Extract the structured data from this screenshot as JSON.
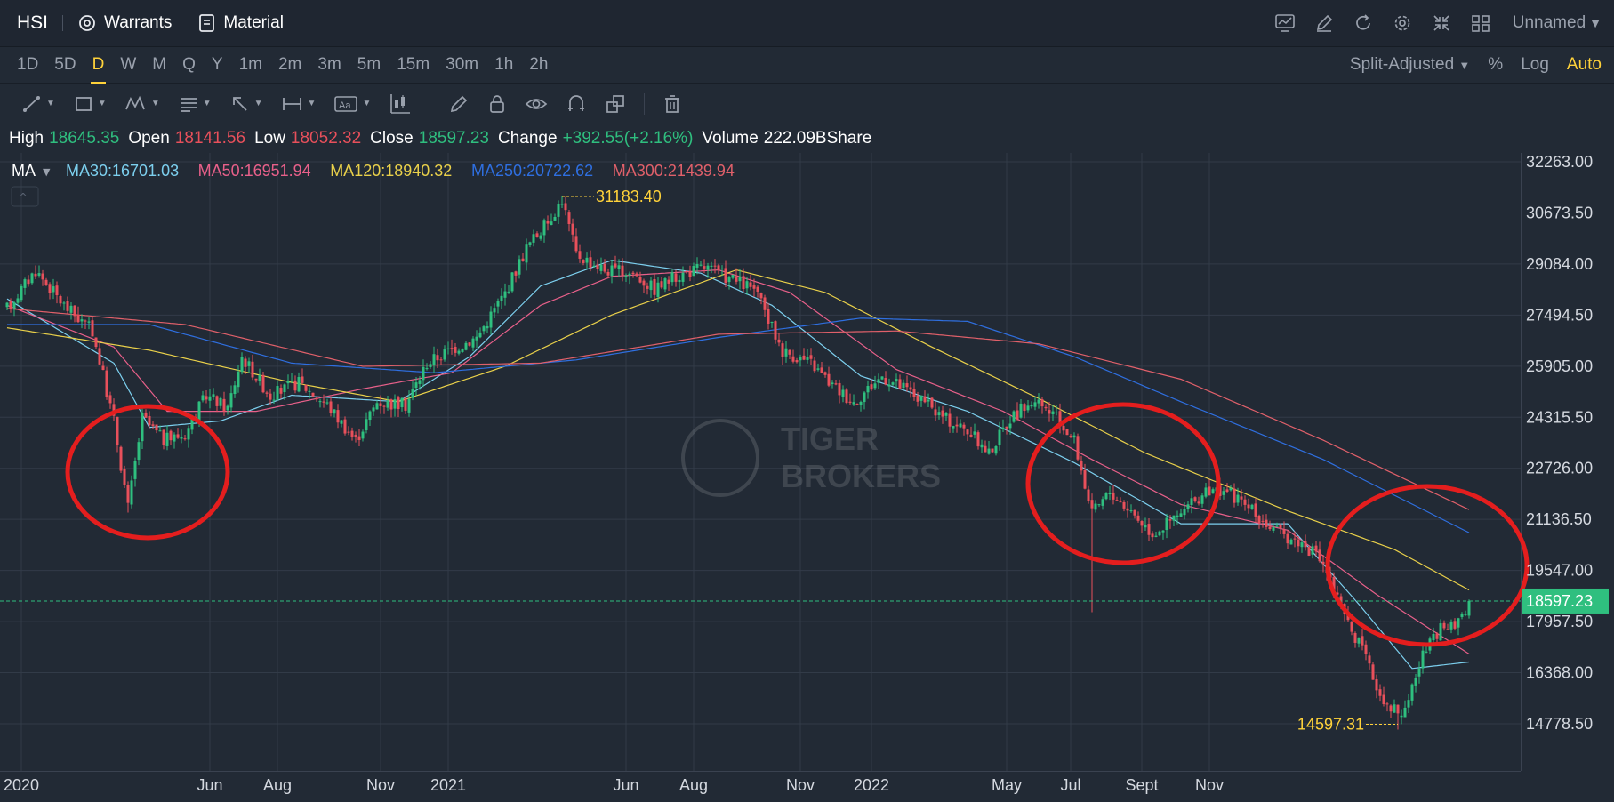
{
  "topbar": {
    "symbol": "HSI",
    "warrants_label": "Warrants",
    "material_label": "Material",
    "layout_name": "Unnamed",
    "icons": [
      "chart-settings-icon",
      "draw-icon",
      "refresh-icon",
      "gear-icon",
      "collapse-icon",
      "grid-layout-icon"
    ]
  },
  "periods": {
    "items": [
      "1D",
      "5D",
      "D",
      "W",
      "M",
      "Q",
      "Y",
      "1m",
      "2m",
      "3m",
      "5m",
      "15m",
      "30m",
      "1h",
      "2h"
    ],
    "active": "D",
    "adjust_label": "Split-Adjusted",
    "percent_label": "%",
    "log_label": "Log",
    "auto_label": "Auto"
  },
  "drawing_tools": [
    "trend-line-icon",
    "rectangle-icon",
    "pattern-icon",
    "fibonacci-icon",
    "arrow-icon",
    "measure-icon",
    "text-icon",
    "candle-icon",
    "pencil-icon",
    "lock-icon",
    "eye-icon",
    "magnet-icon",
    "clone-icon",
    "trash-icon"
  ],
  "info": {
    "high_label": "High",
    "high": "18645.35",
    "open_label": "Open",
    "open": "18141.56",
    "low_label": "Low",
    "low": "18052.32",
    "close_label": "Close",
    "close": "18597.23",
    "change_label": "Change",
    "change": "+392.55(+2.16%)",
    "volume_label": "Volume",
    "volume": "222.09BShare"
  },
  "colors": {
    "up": "#2fbf7f",
    "down": "#e8505b",
    "ma30": "#7ccfee",
    "ma50": "#e8608a",
    "ma120": "#e9d04a",
    "ma250": "#2f6fe0",
    "ma300": "#e0606a",
    "annotation": "#ffd23a",
    "circle": "#e41e1e",
    "price_tag": "#2fbf7f"
  },
  "chart_data": {
    "type": "candlestick",
    "indicator_label": "MA",
    "ma_legend": [
      {
        "name": "MA30",
        "value": "16701.03",
        "color": "#7ccfee"
      },
      {
        "name": "MA50",
        "value": "16951.94",
        "color": "#e8608a"
      },
      {
        "name": "MA120",
        "value": "18940.32",
        "color": "#e9d04a"
      },
      {
        "name": "MA250",
        "value": "20722.62",
        "color": "#2f6fe0"
      },
      {
        "name": "MA300",
        "value": "21439.94",
        "color": "#e0606a"
      }
    ],
    "y_ticks": [
      "32263.00",
      "30673.50",
      "29084.00",
      "27494.50",
      "25905.00",
      "24315.50",
      "22726.00",
      "21136.50",
      "19547.00",
      "17957.50",
      "16368.00",
      "14778.50"
    ],
    "ylim": [
      14778.5,
      32263.0
    ],
    "x_ticks": [
      "2020",
      "Jun",
      "Aug",
      "Nov",
      "2021",
      "Jun",
      "Aug",
      "Nov",
      "2022",
      "May",
      "Jul",
      "Sept",
      "Nov"
    ],
    "last_price": 18597.23,
    "last_price_label": "18597.23",
    "max_label": "31183.40",
    "min_label": "14597.31",
    "watermark_top": "TIGER",
    "watermark_bottom": "BROKERS",
    "anchors": [
      [
        0,
        27700
      ],
      [
        8,
        28900
      ],
      [
        16,
        27800
      ],
      [
        24,
        27000
      ],
      [
        30,
        24200
      ],
      [
        34,
        21500
      ],
      [
        38,
        24300
      ],
      [
        44,
        23600
      ],
      [
        50,
        23800
      ],
      [
        56,
        25000
      ],
      [
        62,
        24600
      ],
      [
        66,
        26200
      ],
      [
        74,
        25000
      ],
      [
        82,
        25400
      ],
      [
        90,
        24700
      ],
      [
        98,
        23600
      ],
      [
        104,
        24800
      ],
      [
        112,
        24700
      ],
      [
        118,
        26000
      ],
      [
        126,
        26500
      ],
      [
        132,
        26800
      ],
      [
        140,
        28200
      ],
      [
        146,
        29600
      ],
      [
        152,
        30400
      ],
      [
        156,
        31100
      ],
      [
        160,
        29400
      ],
      [
        168,
        28900
      ],
      [
        176,
        28800
      ],
      [
        182,
        28300
      ],
      [
        188,
        28700
      ],
      [
        196,
        29000
      ],
      [
        204,
        28600
      ],
      [
        210,
        28300
      ],
      [
        218,
        26400
      ],
      [
        226,
        26000
      ],
      [
        232,
        25300
      ],
      [
        238,
        24800
      ],
      [
        246,
        25600
      ],
      [
        254,
        25100
      ],
      [
        262,
        24400
      ],
      [
        270,
        23900
      ],
      [
        276,
        23200
      ],
      [
        282,
        24300
      ],
      [
        288,
        24800
      ],
      [
        294,
        24400
      ],
      [
        300,
        23600
      ],
      [
        305,
        21300
      ],
      [
        310,
        22000
      ],
      [
        316,
        21400
      ],
      [
        322,
        20700
      ],
      [
        330,
        21300
      ],
      [
        336,
        21900
      ],
      [
        342,
        22100
      ],
      [
        348,
        21600
      ],
      [
        356,
        20800
      ],
      [
        364,
        20400
      ],
      [
        370,
        19800
      ],
      [
        376,
        18100
      ],
      [
        380,
        17300
      ],
      [
        386,
        15700
      ],
      [
        392,
        15000
      ],
      [
        398,
        16900
      ],
      [
        403,
        17700
      ],
      [
        407,
        17800
      ],
      [
        411,
        18600
      ]
    ],
    "ma": {
      "MA30": [
        [
          0,
          28000
        ],
        [
          30,
          26000
        ],
        [
          40,
          24000
        ],
        [
          60,
          24200
        ],
        [
          80,
          25000
        ],
        [
          110,
          24800
        ],
        [
          130,
          26200
        ],
        [
          150,
          28400
        ],
        [
          170,
          29200
        ],
        [
          195,
          28800
        ],
        [
          215,
          27800
        ],
        [
          240,
          25600
        ],
        [
          270,
          24500
        ],
        [
          300,
          22900
        ],
        [
          330,
          21000
        ],
        [
          360,
          21000
        ],
        [
          380,
          18500
        ],
        [
          395,
          16500
        ],
        [
          411,
          16701
        ]
      ],
      "MA50": [
        [
          0,
          27800
        ],
        [
          30,
          26500
        ],
        [
          45,
          24500
        ],
        [
          70,
          24500
        ],
        [
          100,
          25200
        ],
        [
          125,
          25700
        ],
        [
          150,
          27800
        ],
        [
          170,
          28700
        ],
        [
          200,
          28900
        ],
        [
          220,
          28200
        ],
        [
          250,
          25800
        ],
        [
          280,
          24500
        ],
        [
          305,
          23000
        ],
        [
          330,
          21600
        ],
        [
          360,
          20800
        ],
        [
          385,
          18800
        ],
        [
          411,
          16952
        ]
      ],
      "MA120": [
        [
          0,
          27100
        ],
        [
          40,
          26400
        ],
        [
          80,
          25400
        ],
        [
          110,
          24800
        ],
        [
          140,
          25900
        ],
        [
          170,
          27500
        ],
        [
          205,
          28900
        ],
        [
          230,
          28200
        ],
        [
          260,
          26500
        ],
        [
          290,
          24900
        ],
        [
          320,
          23200
        ],
        [
          360,
          21400
        ],
        [
          390,
          20200
        ],
        [
          411,
          18940
        ]
      ],
      "MA250": [
        [
          0,
          27200
        ],
        [
          40,
          27200
        ],
        [
          80,
          26000
        ],
        [
          120,
          25700
        ],
        [
          160,
          26100
        ],
        [
          200,
          26800
        ],
        [
          240,
          27400
        ],
        [
          270,
          27300
        ],
        [
          300,
          26200
        ],
        [
          330,
          24800
        ],
        [
          370,
          23000
        ],
        [
          411,
          20723
        ]
      ],
      "MA300": [
        [
          0,
          27700
        ],
        [
          50,
          27200
        ],
        [
          100,
          25900
        ],
        [
          150,
          26000
        ],
        [
          200,
          26900
        ],
        [
          250,
          27000
        ],
        [
          290,
          26600
        ],
        [
          330,
          25500
        ],
        [
          370,
          23600
        ],
        [
          411,
          21440
        ]
      ]
    }
  }
}
